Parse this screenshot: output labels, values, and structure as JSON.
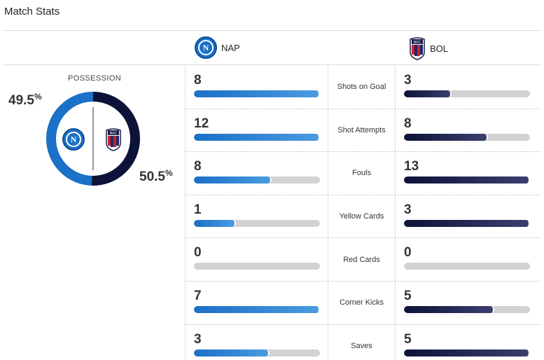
{
  "header": {
    "title": "Match Stats"
  },
  "teams": {
    "home": {
      "abbr": "NAP",
      "badge_letter": "N",
      "color": "#1b70c7"
    },
    "away": {
      "abbr": "BOL",
      "badge_letter": "BFC",
      "color": "#0d1238"
    }
  },
  "possession": {
    "label": "POSSESSION",
    "home_value": "49.5",
    "away_value": "50.5",
    "percent_sign": "%",
    "home_fraction": 0.495,
    "away_fraction": 0.505
  },
  "stats": [
    {
      "name": "Shots on Goal",
      "home": "8",
      "away": "3",
      "home_fill": 1.0,
      "away_fill": 0.375
    },
    {
      "name": "Shot Attempts",
      "home": "12",
      "away": "8",
      "home_fill": 1.0,
      "away_fill": 0.667
    },
    {
      "name": "Fouls",
      "home": "8",
      "away": "13",
      "home_fill": 0.615,
      "away_fill": 1.0
    },
    {
      "name": "Yellow Cards",
      "home": "1",
      "away": "3",
      "home_fill": 0.333,
      "away_fill": 1.0
    },
    {
      "name": "Red Cards",
      "home": "0",
      "away": "0",
      "home_fill": 0,
      "away_fill": 0
    },
    {
      "name": "Corner Kicks",
      "home": "7",
      "away": "5",
      "home_fill": 1.0,
      "away_fill": 0.714
    },
    {
      "name": "Saves",
      "home": "3",
      "away": "5",
      "home_fill": 0.6,
      "away_fill": 1.0
    }
  ]
}
